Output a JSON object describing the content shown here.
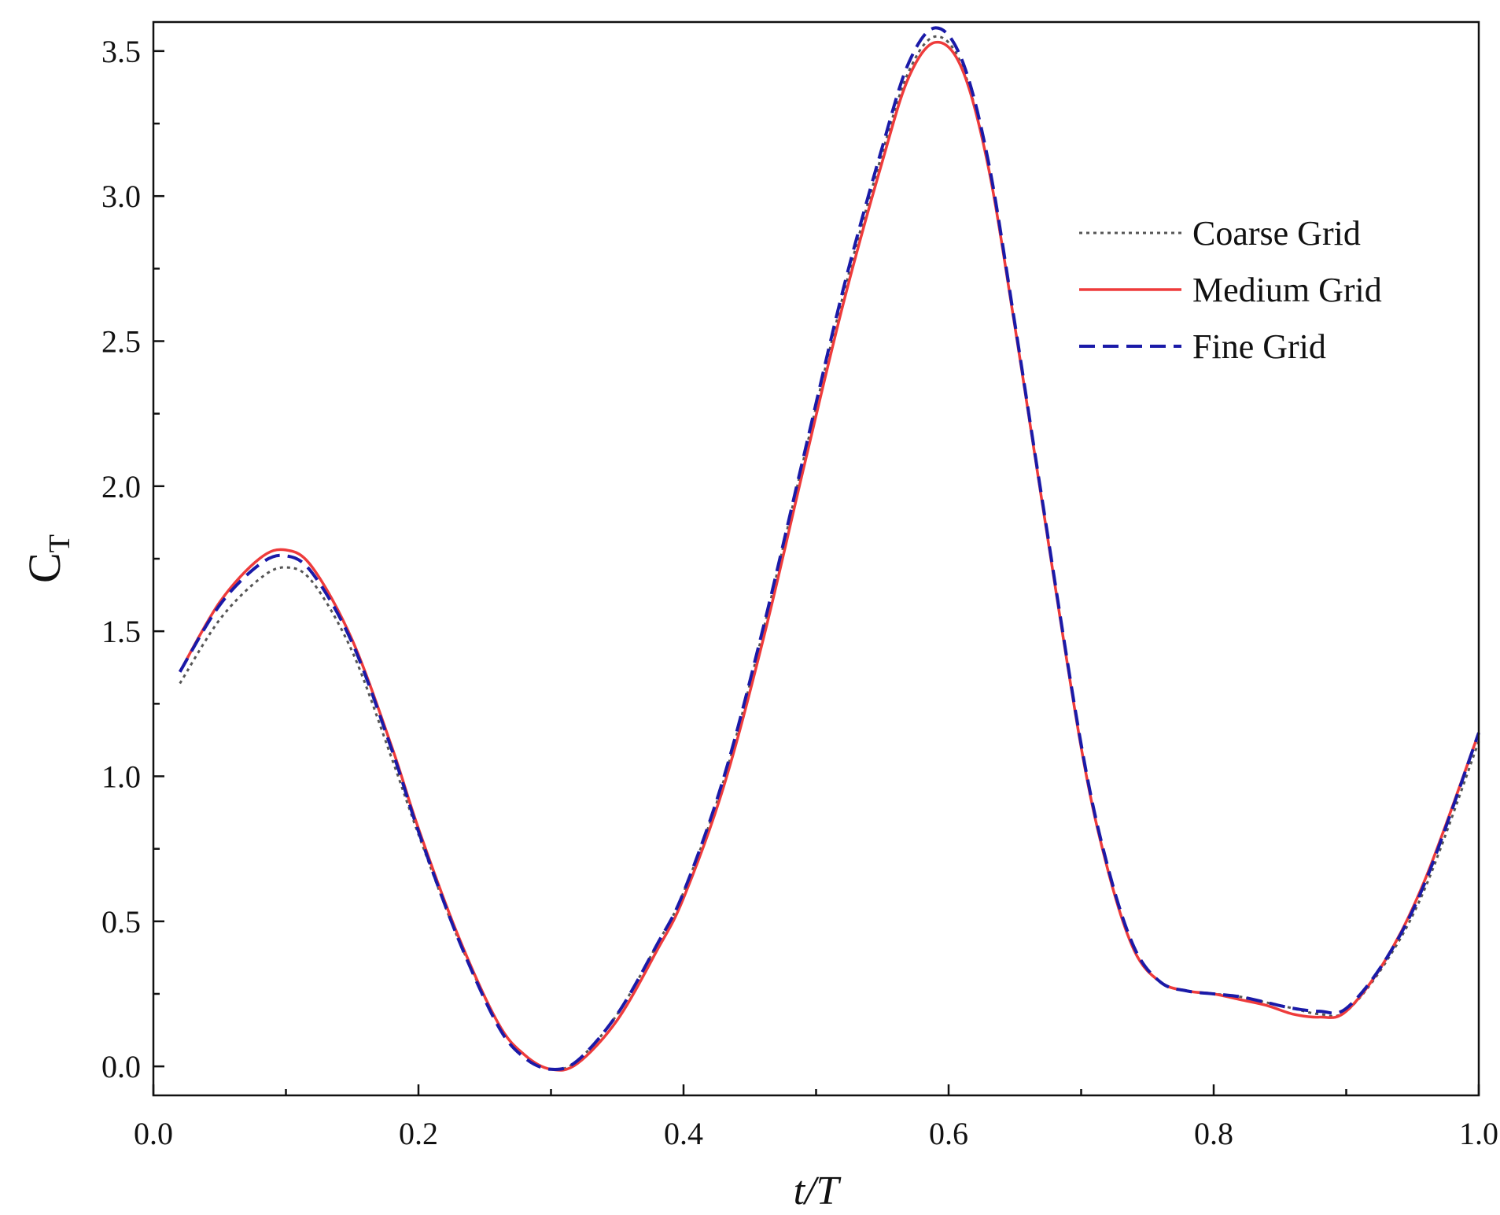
{
  "chart_data": {
    "type": "line",
    "title": "",
    "xlabel": "t/T",
    "ylabel_main": "C",
    "ylabel_sub": "T",
    "xlim": [
      0.0,
      1.0
    ],
    "ylim": [
      -0.1,
      3.6
    ],
    "xticks": [
      0.0,
      0.2,
      0.4,
      0.6,
      0.8,
      1.0
    ],
    "xtick_labels": [
      "0.0",
      "0.2",
      "0.4",
      "0.6",
      "0.8",
      "1.0"
    ],
    "yticks": [
      0.0,
      0.5,
      1.0,
      1.5,
      2.0,
      2.5,
      3.0,
      3.5
    ],
    "ytick_labels": [
      "0.0",
      "0.5",
      "1.0",
      "1.5",
      "2.0",
      "2.5",
      "3.0",
      "3.5"
    ],
    "grid": false,
    "legend_position": "right",
    "series": [
      {
        "name": "Coarse Grid",
        "color": "#555555",
        "style": "dotted",
        "x": [
          0.02,
          0.05,
          0.08,
          0.1,
          0.12,
          0.15,
          0.18,
          0.2,
          0.23,
          0.26,
          0.28,
          0.3,
          0.32,
          0.35,
          0.38,
          0.4,
          0.43,
          0.46,
          0.49,
          0.52,
          0.55,
          0.57,
          0.59,
          0.61,
          0.63,
          0.65,
          0.67,
          0.7,
          0.72,
          0.74,
          0.76,
          0.78,
          0.8,
          0.82,
          0.84,
          0.86,
          0.88,
          0.9,
          0.93,
          0.96,
          1.0
        ],
        "y": [
          1.32,
          1.54,
          1.68,
          1.72,
          1.67,
          1.43,
          1.06,
          0.8,
          0.44,
          0.15,
          0.04,
          -0.01,
          0.02,
          0.18,
          0.42,
          0.6,
          0.98,
          1.5,
          2.08,
          2.65,
          3.15,
          3.43,
          3.55,
          3.45,
          3.1,
          2.55,
          1.96,
          1.1,
          0.68,
          0.4,
          0.29,
          0.26,
          0.25,
          0.24,
          0.22,
          0.2,
          0.18,
          0.19,
          0.36,
          0.62,
          1.12
        ]
      },
      {
        "name": "Medium Grid",
        "color": "#ee3b3b",
        "style": "solid",
        "x": [
          0.02,
          0.05,
          0.08,
          0.1,
          0.12,
          0.15,
          0.18,
          0.2,
          0.23,
          0.26,
          0.28,
          0.3,
          0.32,
          0.35,
          0.38,
          0.4,
          0.43,
          0.46,
          0.49,
          0.52,
          0.55,
          0.57,
          0.59,
          0.61,
          0.63,
          0.65,
          0.67,
          0.7,
          0.72,
          0.74,
          0.76,
          0.78,
          0.8,
          0.82,
          0.84,
          0.86,
          0.88,
          0.9,
          0.93,
          0.96,
          1.0
        ],
        "y": [
          1.36,
          1.6,
          1.75,
          1.78,
          1.72,
          1.47,
          1.1,
          0.82,
          0.45,
          0.15,
          0.04,
          -0.01,
          0.01,
          0.16,
          0.4,
          0.58,
          0.96,
          1.47,
          2.05,
          2.62,
          3.12,
          3.41,
          3.53,
          3.44,
          3.1,
          2.55,
          1.96,
          1.1,
          0.68,
          0.4,
          0.29,
          0.26,
          0.25,
          0.23,
          0.21,
          0.18,
          0.17,
          0.19,
          0.37,
          0.65,
          1.15
        ]
      },
      {
        "name": "Fine Grid",
        "color": "#1a1aa8",
        "style": "dashed",
        "x": [
          0.02,
          0.05,
          0.08,
          0.1,
          0.12,
          0.15,
          0.18,
          0.2,
          0.23,
          0.26,
          0.28,
          0.3,
          0.32,
          0.35,
          0.38,
          0.4,
          0.43,
          0.46,
          0.49,
          0.52,
          0.55,
          0.57,
          0.59,
          0.61,
          0.63,
          0.65,
          0.67,
          0.7,
          0.72,
          0.74,
          0.76,
          0.78,
          0.8,
          0.82,
          0.84,
          0.86,
          0.88,
          0.9,
          0.93,
          0.96,
          1.0
        ],
        "y": [
          1.36,
          1.59,
          1.73,
          1.76,
          1.7,
          1.46,
          1.09,
          0.81,
          0.44,
          0.14,
          0.03,
          -0.01,
          0.02,
          0.18,
          0.42,
          0.6,
          0.99,
          1.51,
          2.09,
          2.67,
          3.17,
          3.46,
          3.58,
          3.47,
          3.12,
          2.56,
          1.97,
          1.11,
          0.69,
          0.41,
          0.29,
          0.26,
          0.25,
          0.24,
          0.22,
          0.2,
          0.19,
          0.2,
          0.37,
          0.64,
          1.15
        ]
      }
    ]
  }
}
